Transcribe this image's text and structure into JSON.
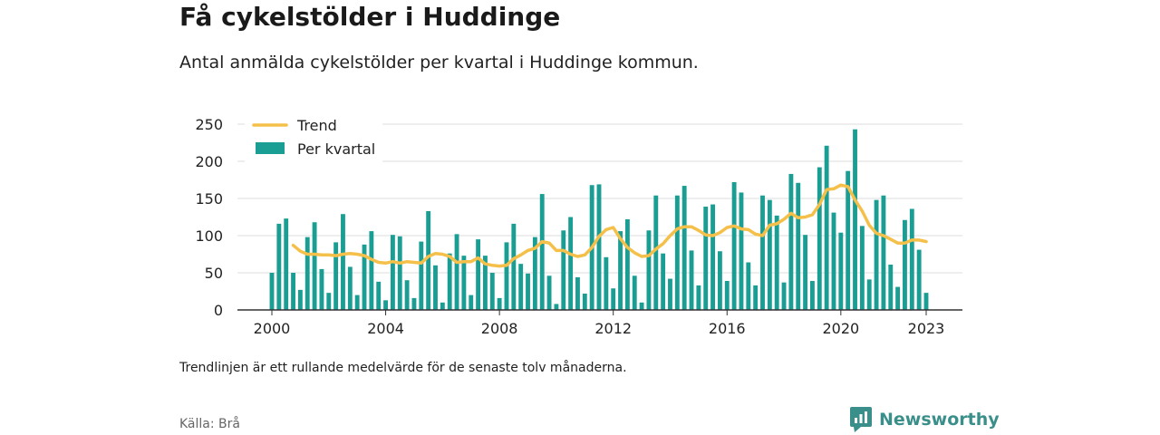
{
  "header": {
    "title": "Få cykelstölder i Huddinge",
    "subtitle": "Antal anmälda cykelstölder per kvartal i Huddinge kommun."
  },
  "footer": {
    "note": "Trendlinjen är ett rullande medelvärde för de senaste tolv månaderna.",
    "source": "Källa: Brå",
    "brand": "Newsworthy"
  },
  "colors": {
    "bar": "#1a9e94",
    "trend": "#f5c04a",
    "brand": "#3a8f8a"
  },
  "chart_data": {
    "type": "bar",
    "title": "Få cykelstölder i Huddinge",
    "subtitle": "Antal anmälda cykelstölder per kvartal i Huddinge kommun.",
    "xlabel": "",
    "ylabel": "",
    "ylim": [
      0,
      250
    ],
    "yticks": [
      0,
      50,
      100,
      150,
      200,
      250
    ],
    "xticks": [
      "2000",
      "2004",
      "2008",
      "2012",
      "2016",
      "2020",
      "2023"
    ],
    "grid": true,
    "legend_position": "top-left",
    "legend": [
      "Trend",
      "Per kvartal"
    ],
    "start_quarter": "2000-Q1",
    "series": [
      {
        "name": "Per kvartal",
        "kind": "bar",
        "values": [
          50,
          116,
          123,
          50,
          27,
          98,
          118,
          55,
          23,
          91,
          129,
          58,
          20,
          88,
          106,
          38,
          13,
          101,
          99,
          40,
          16,
          92,
          133,
          60,
          10,
          76,
          102,
          73,
          20,
          95,
          73,
          50,
          16,
          91,
          116,
          62,
          49,
          98,
          156,
          46,
          8,
          107,
          125,
          44,
          22,
          168,
          169,
          71,
          29,
          106,
          122,
          46,
          10,
          107,
          154,
          76,
          42,
          154,
          167,
          80,
          33,
          139,
          142,
          79,
          39,
          172,
          158,
          64,
          33,
          154,
          148,
          127,
          37,
          183,
          171,
          101,
          39,
          192,
          221,
          131,
          104,
          187,
          243,
          113,
          41,
          148,
          154,
          61,
          31,
          121,
          136,
          81,
          23
        ]
      },
      {
        "name": "Trend",
        "kind": "line",
        "values": [
          null,
          null,
          null,
          87,
          79,
          75,
          75,
          74,
          74,
          73,
          75,
          76,
          75,
          73,
          68,
          64,
          63,
          65,
          63,
          65,
          64,
          63,
          72,
          76,
          75,
          72,
          64,
          65,
          65,
          70,
          62,
          60,
          59,
          60,
          69,
          74,
          80,
          83,
          92,
          90,
          80,
          80,
          75,
          72,
          74,
          84,
          99,
          108,
          111,
          96,
          84,
          77,
          72,
          73,
          82,
          89,
          100,
          109,
          112,
          112,
          107,
          101,
          100,
          104,
          111,
          113,
          109,
          108,
          102,
          100,
          114,
          116,
          122,
          130,
          124,
          125,
          128,
          142,
          162,
          163,
          168,
          166,
          148,
          133,
          114,
          103,
          100,
          95,
          90,
          90,
          94,
          94,
          92
        ]
      }
    ]
  }
}
